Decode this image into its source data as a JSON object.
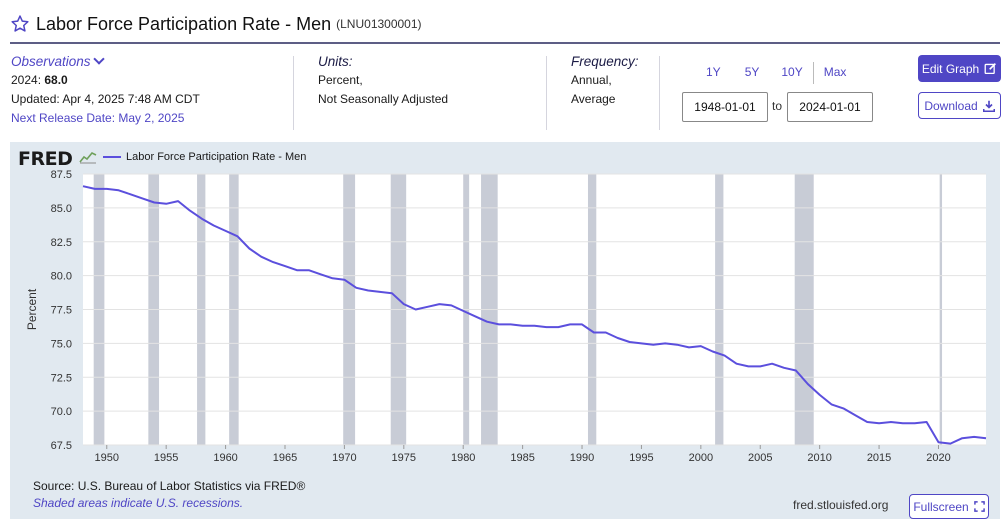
{
  "header": {
    "title": "Labor Force Participation Rate - Men",
    "series_id": "(LNU01300001)"
  },
  "observations": {
    "label": "Observations",
    "latest_year": "2024:",
    "latest_value": "68.0",
    "updated": "Updated: Apr 4, 2025 7:48 AM CDT",
    "next_release": "Next Release Date: May 2, 2025"
  },
  "units": {
    "label": "Units:",
    "line1": "Percent,",
    "line2": "Not Seasonally Adjusted"
  },
  "frequency": {
    "label": "Frequency:",
    "line1": "Annual,",
    "line2": "Average"
  },
  "range": {
    "btn_1y": "1Y",
    "btn_5y": "5Y",
    "btn_10y": "10Y",
    "btn_max": "Max",
    "start": "1948-01-01",
    "to": "to",
    "end": "2024-01-01"
  },
  "buttons": {
    "edit": "Edit Graph",
    "download": "Download",
    "fullscreen": "Fullscreen"
  },
  "footer": {
    "source": "Source: U.S. Bureau of Labor Statistics via FRED®",
    "shaded_note": "Shaded areas indicate U.S. recessions.",
    "url": "fred.stlouisfed.org"
  },
  "logo": {
    "text": "FRED"
  },
  "colors": {
    "accent": "#4f46c5",
    "line": "#5b4fdd",
    "panel": "#e1e9f0",
    "recession": "#c8ccd6"
  },
  "chart_data": {
    "type": "line",
    "title": "",
    "xlabel": "",
    "ylabel": "Percent",
    "xlim": [
      1948,
      2024
    ],
    "ylim": [
      67.5,
      87.5
    ],
    "grid": true,
    "legend_placement": "top-left",
    "yticks": [
      "67.5",
      "70.0",
      "72.5",
      "75.0",
      "77.5",
      "80.0",
      "82.5",
      "85.0",
      "87.5"
    ],
    "xticks": [
      "1950",
      "1955",
      "1960",
      "1965",
      "1970",
      "1975",
      "1980",
      "1985",
      "1990",
      "1995",
      "2000",
      "2005",
      "2010",
      "2015",
      "2020"
    ],
    "recessions": [
      [
        1948.9,
        1949.8
      ],
      [
        1953.5,
        1954.4
      ],
      [
        1957.6,
        1958.3
      ],
      [
        1960.3,
        1961.1
      ],
      [
        1969.9,
        1970.9
      ],
      [
        1973.9,
        1975.2
      ],
      [
        1980.0,
        1980.5
      ],
      [
        1981.5,
        1982.9
      ],
      [
        1990.5,
        1991.2
      ],
      [
        2001.2,
        2001.9
      ],
      [
        2007.9,
        2009.5
      ],
      [
        2020.1,
        2020.3
      ]
    ],
    "series": [
      {
        "name": "Labor Force Participation Rate - Men",
        "x": [
          1948,
          1949,
          1950,
          1951,
          1952,
          1953,
          1954,
          1955,
          1956,
          1957,
          1958,
          1959,
          1960,
          1961,
          1962,
          1963,
          1964,
          1965,
          1966,
          1967,
          1968,
          1969,
          1970,
          1971,
          1972,
          1973,
          1974,
          1975,
          1976,
          1977,
          1978,
          1979,
          1980,
          1981,
          1982,
          1983,
          1984,
          1985,
          1986,
          1987,
          1988,
          1989,
          1990,
          1991,
          1992,
          1993,
          1994,
          1995,
          1996,
          1997,
          1998,
          1999,
          2000,
          2001,
          2002,
          2003,
          2004,
          2005,
          2006,
          2007,
          2008,
          2009,
          2010,
          2011,
          2012,
          2013,
          2014,
          2015,
          2016,
          2017,
          2018,
          2019,
          2020,
          2021,
          2022,
          2023,
          2024
        ],
        "values": [
          86.6,
          86.4,
          86.4,
          86.3,
          86.0,
          85.7,
          85.4,
          85.3,
          85.5,
          84.8,
          84.2,
          83.7,
          83.3,
          82.9,
          82.0,
          81.4,
          81.0,
          80.7,
          80.4,
          80.4,
          80.1,
          79.8,
          79.7,
          79.1,
          78.9,
          78.8,
          78.7,
          77.9,
          77.5,
          77.7,
          77.9,
          77.8,
          77.4,
          77.0,
          76.6,
          76.4,
          76.4,
          76.3,
          76.3,
          76.2,
          76.2,
          76.4,
          76.4,
          75.8,
          75.8,
          75.4,
          75.1,
          75.0,
          74.9,
          75.0,
          74.9,
          74.7,
          74.8,
          74.4,
          74.1,
          73.5,
          73.3,
          73.3,
          73.5,
          73.2,
          73.0,
          72.0,
          71.2,
          70.5,
          70.2,
          69.7,
          69.2,
          69.1,
          69.2,
          69.1,
          69.1,
          69.2,
          67.7,
          67.6,
          68.0,
          68.1,
          68.0
        ]
      }
    ]
  }
}
